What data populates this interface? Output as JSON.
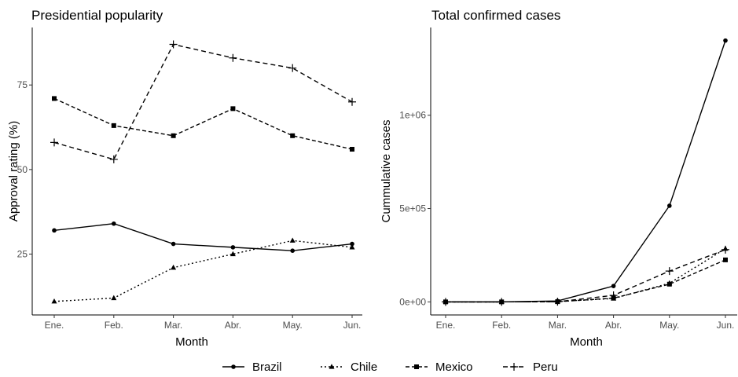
{
  "chart_data": [
    {
      "type": "line",
      "title": "Presidential popularity",
      "xlabel": "Month",
      "ylabel": "Approval rating  (%)",
      "categories": [
        "Ene.",
        "Feb.",
        "Mar.",
        "Abr.",
        "May.",
        "Jun."
      ],
      "yticks": [
        25,
        50,
        75
      ],
      "ytick_labels": [
        "25",
        "50",
        "75"
      ],
      "ylim": [
        7,
        92
      ],
      "grid": false,
      "series": [
        {
          "name": "Brazil",
          "values": [
            32,
            34,
            28,
            27,
            26,
            28
          ]
        },
        {
          "name": "Chile",
          "values": [
            11,
            12,
            21,
            25,
            29,
            27
          ]
        },
        {
          "name": "Mexico",
          "values": [
            71,
            63,
            60,
            68,
            60,
            56
          ]
        },
        {
          "name": "Peru",
          "values": [
            58,
            53,
            87,
            83,
            80,
            70
          ]
        }
      ]
    },
    {
      "type": "line",
      "title": "Total confirmed cases",
      "xlabel": "Month",
      "ylabel": "Cummulative cases",
      "categories": [
        "Ene.",
        "Feb.",
        "Mar.",
        "Abr.",
        "May.",
        "Jun."
      ],
      "yticks": [
        0,
        500000,
        1000000
      ],
      "ytick_labels": [
        "0e+00",
        "5e+05",
        "1e+06"
      ],
      "ylim": [
        -70000,
        1470000
      ],
      "grid": false,
      "series": [
        {
          "name": "Brazil",
          "values": [
            0,
            0,
            5000,
            85000,
            515000,
            1400000
          ]
        },
        {
          "name": "Chile",
          "values": [
            0,
            0,
            2000,
            18000,
            100000,
            285000
          ]
        },
        {
          "name": "Mexico",
          "values": [
            0,
            0,
            1000,
            20000,
            95000,
            225000
          ]
        },
        {
          "name": "Peru",
          "values": [
            0,
            0,
            1000,
            35000,
            165000,
            280000
          ]
        }
      ]
    }
  ],
  "legend": {
    "position": "bottom",
    "entries": [
      {
        "name": "Brazil",
        "marker": "circle",
        "line": "solid"
      },
      {
        "name": "Chile",
        "marker": "triangle",
        "line": "dotted"
      },
      {
        "name": "Mexico",
        "marker": "square",
        "line": "dashed"
      },
      {
        "name": "Peru",
        "marker": "plus",
        "line": "longdash"
      }
    ]
  }
}
